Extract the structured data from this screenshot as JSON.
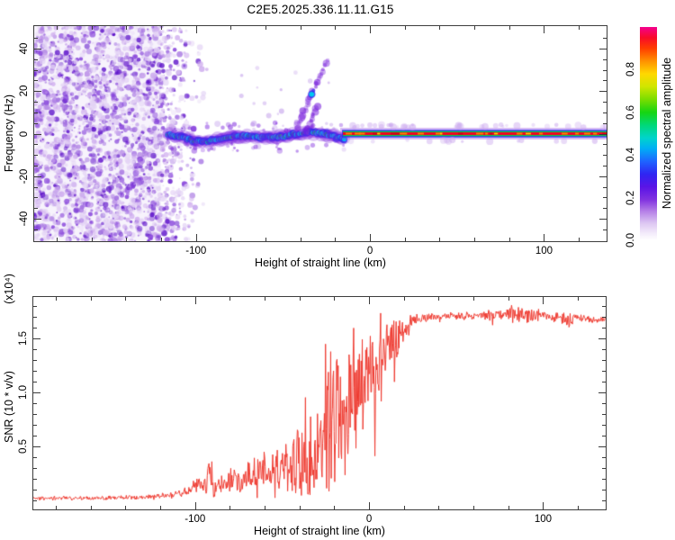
{
  "title": "C2E5.2025.336.11.11.G15",
  "axis_color": "#3c3c3c",
  "chart_data": [
    {
      "type": "heatmap",
      "panel": "spectrogram",
      "title": "C2E5.2025.336.11.11.G15",
      "xlabel": "Height of straight line (km)",
      "ylabel": "Frequency (Hz)",
      "xlim": [
        -193,
        136
      ],
      "ylim": [
        -50.5,
        50.5
      ],
      "x_ticks": {
        "major": [
          -100,
          0,
          100
        ],
        "labels": [
          "-100",
          "0",
          "100"
        ],
        "minor_step": 20
      },
      "y_ticks": {
        "major": [
          -40,
          -20,
          0,
          20,
          40
        ],
        "labels": [
          "-40",
          "-20",
          "0",
          "20",
          "40"
        ],
        "minor_step": 5
      },
      "colorbar": {
        "label": "Normalized spectral amplitude",
        "range": [
          0,
          1
        ],
        "ticks": [
          0,
          0.2,
          0.4,
          0.6,
          0.8
        ],
        "tick_labels": [
          "0.0",
          "0.2",
          "0.4",
          "0.6",
          "0.8"
        ],
        "gradient": [
          [
            "0.00",
            "#ffffff"
          ],
          [
            "0.03",
            "#f4edfb"
          ],
          [
            "0.08",
            "#ddc7f2"
          ],
          [
            "0.14",
            "#b27ae6"
          ],
          [
            "0.19",
            "#8133e0"
          ],
          [
            "0.25",
            "#5a14e6"
          ],
          [
            "0.31",
            "#2f25f2"
          ],
          [
            "0.37",
            "#1e64ff"
          ],
          [
            "0.43",
            "#00aef5"
          ],
          [
            "0.48",
            "#00d4cb"
          ],
          [
            "0.54",
            "#00d878"
          ],
          [
            "0.60",
            "#16d512"
          ],
          [
            "0.66",
            "#79dd00"
          ],
          [
            "0.72",
            "#cfe600"
          ],
          [
            "0.78",
            "#ffd800"
          ],
          [
            "0.84",
            "#ff9100"
          ],
          [
            "0.90",
            "#ff3d00"
          ],
          [
            "0.95",
            "#f80b28"
          ],
          [
            "1.00",
            "#f4008e"
          ]
        ]
      },
      "features": {
        "noise_region": {
          "x_range_km": [
            -193,
            -120
          ],
          "fade_end_km": -92,
          "freq_range_hz": [
            -50.5,
            50.5
          ],
          "palette": [
            "#f1eafa",
            "#e3d2f5",
            "#cdaaee",
            "#a877e2",
            "#8440da",
            "#5c11c9"
          ]
        },
        "signal_band": {
          "center_hz": 0,
          "wavy_km": [
            -116,
            -14
          ],
          "wavy_freq_wander_hz": [
            -7,
            1
          ],
          "straight_km": [
            -14,
            136
          ],
          "colors": {
            "halo": "#7a22dd",
            "outer": "#2a2af0",
            "mid": "#00c8f0",
            "inner": "#00d840",
            "hot": "#ffe000",
            "core": "#f50020"
          }
        },
        "chirp_streaks": [
          {
            "from_km_hz": [
              -42,
              3
            ],
            "to_km_hz": [
              -25,
              34
            ]
          },
          {
            "from_km_hz": [
              -37,
              1
            ],
            "to_km_hz": [
              -30,
              13
            ]
          }
        ]
      }
    },
    {
      "type": "line",
      "panel": "snr",
      "xlabel": "Height of straight line (km)",
      "ylabel": "SNR (10 * v/v)",
      "ylabel_scale": "(x10⁴)",
      "line_color": "#ee3a30",
      "xlim": [
        -193,
        136
      ],
      "ylim": [
        -0.083,
        1.883
      ],
      "x_ticks": {
        "major": [
          -100,
          0,
          100
        ],
        "labels": [
          "-100",
          "0",
          "100"
        ],
        "minor_step": 20
      },
      "y_ticks": {
        "major": [
          0.5,
          1.0,
          1.5
        ],
        "labels": [
          "0.5",
          "1.0",
          "1.5"
        ],
        "minor_step": 0.1
      },
      "envelope": [
        [
          -193,
          0.02,
          0.02
        ],
        [
          -160,
          0.02,
          0.02
        ],
        [
          -130,
          0.03,
          0.025
        ],
        [
          -115,
          0.05,
          0.03
        ],
        [
          -105,
          0.08,
          0.05
        ],
        [
          -99,
          0.14,
          0.1
        ],
        [
          -95,
          0.13,
          0.08
        ],
        [
          -91,
          0.22,
          0.24
        ],
        [
          -88,
          0.14,
          0.1
        ],
        [
          -84,
          0.12,
          0.08
        ],
        [
          -80,
          0.2,
          0.16
        ],
        [
          -76,
          0.18,
          0.14
        ],
        [
          -72,
          0.16,
          0.12
        ],
        [
          -68,
          0.25,
          0.2
        ],
        [
          -64,
          0.22,
          0.18
        ],
        [
          -60,
          0.3,
          0.22
        ],
        [
          -56,
          0.25,
          0.2
        ],
        [
          -52,
          0.28,
          0.22
        ],
        [
          -48,
          0.32,
          0.26
        ],
        [
          -44,
          0.3,
          0.35
        ],
        [
          -40,
          0.45,
          0.5
        ],
        [
          -36,
          0.5,
          0.6
        ],
        [
          -32,
          0.4,
          0.35
        ],
        [
          -28,
          0.55,
          0.5
        ],
        [
          -24,
          0.7,
          0.8
        ],
        [
          -21,
          0.9,
          0.85
        ],
        [
          -18,
          0.75,
          0.7
        ],
        [
          -15,
          0.55,
          0.5
        ],
        [
          -12,
          0.9,
          0.7
        ],
        [
          -9,
          1.1,
          0.5
        ],
        [
          -6,
          1.05,
          0.55
        ],
        [
          -3,
          1.15,
          0.5
        ],
        [
          0,
          1.1,
          0.55
        ],
        [
          3,
          1.3,
          0.45
        ],
        [
          6,
          1.25,
          0.45
        ],
        [
          9,
          1.35,
          0.4
        ],
        [
          12,
          1.45,
          0.3
        ],
        [
          15,
          1.5,
          0.25
        ],
        [
          18,
          1.55,
          0.2
        ],
        [
          21,
          1.6,
          0.15
        ],
        [
          24,
          1.65,
          0.1
        ],
        [
          28,
          1.68,
          0.06
        ],
        [
          35,
          1.7,
          0.045
        ],
        [
          45,
          1.71,
          0.04
        ],
        [
          55,
          1.7,
          0.045
        ],
        [
          65,
          1.71,
          0.05
        ],
        [
          75,
          1.72,
          0.06
        ],
        [
          82,
          1.74,
          0.09
        ],
        [
          88,
          1.73,
          0.1
        ],
        [
          93,
          1.7,
          0.09
        ],
        [
          98,
          1.72,
          0.06
        ],
        [
          104,
          1.71,
          0.05
        ],
        [
          110,
          1.7,
          0.09
        ],
        [
          114,
          1.63,
          0.1
        ],
        [
          118,
          1.7,
          0.05
        ],
        [
          124,
          1.68,
          0.04
        ],
        [
          130,
          1.67,
          0.035
        ],
        [
          136,
          1.68,
          0.035
        ]
      ]
    }
  ]
}
